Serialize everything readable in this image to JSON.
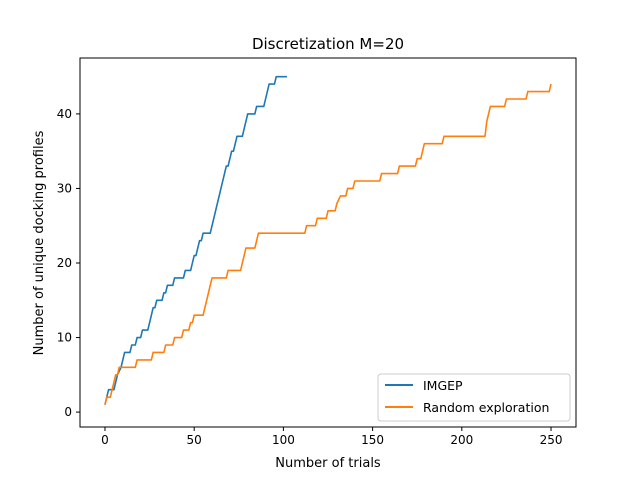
{
  "chart_data": {
    "type": "line",
    "title": "Discretization M=20",
    "xlabel": "Number of trials",
    "ylabel": "Number of unique docking profiles",
    "xlim": [
      -14,
      264
    ],
    "ylim": [
      -2,
      47.5
    ],
    "xticks": [
      0,
      50,
      100,
      150,
      200,
      250
    ],
    "yticks": [
      0,
      10,
      20,
      30,
      40
    ],
    "grid": false,
    "legend_position": "lower-right",
    "series": [
      {
        "name": "IMGEP",
        "color": "#1f77b4",
        "step_points": [
          [
            0,
            1
          ],
          [
            1,
            2
          ],
          [
            2,
            3
          ],
          [
            5,
            3
          ],
          [
            6,
            4
          ],
          [
            7,
            5
          ],
          [
            9,
            6
          ],
          [
            10,
            7
          ],
          [
            11,
            8
          ],
          [
            14,
            8
          ],
          [
            15,
            9
          ],
          [
            17,
            9
          ],
          [
            18,
            10
          ],
          [
            20,
            10
          ],
          [
            21,
            11
          ],
          [
            24,
            11
          ],
          [
            25,
            12
          ],
          [
            26,
            13
          ],
          [
            27,
            14
          ],
          [
            28,
            14
          ],
          [
            29,
            15
          ],
          [
            32,
            15
          ],
          [
            33,
            16
          ],
          [
            34,
            16
          ],
          [
            35,
            17
          ],
          [
            38,
            17
          ],
          [
            39,
            18
          ],
          [
            44,
            18
          ],
          [
            45,
            19
          ],
          [
            48,
            19
          ],
          [
            49,
            20
          ],
          [
            50,
            21
          ],
          [
            51,
            21
          ],
          [
            52,
            22
          ],
          [
            53,
            23
          ],
          [
            54,
            23
          ],
          [
            55,
            24
          ],
          [
            59,
            24
          ],
          [
            60,
            25
          ],
          [
            61,
            26
          ],
          [
            62,
            27
          ],
          [
            63,
            28
          ],
          [
            64,
            29
          ],
          [
            65,
            30
          ],
          [
            66,
            31
          ],
          [
            67,
            32
          ],
          [
            68,
            33
          ],
          [
            69,
            33
          ],
          [
            70,
            34
          ],
          [
            71,
            35
          ],
          [
            72,
            35
          ],
          [
            73,
            36
          ],
          [
            74,
            37
          ],
          [
            77,
            37
          ],
          [
            78,
            38
          ],
          [
            79,
            39
          ],
          [
            80,
            40
          ],
          [
            84,
            40
          ],
          [
            85,
            41
          ],
          [
            89,
            41
          ],
          [
            90,
            42
          ],
          [
            91,
            43
          ],
          [
            92,
            44
          ],
          [
            95,
            44
          ],
          [
            96,
            45
          ],
          [
            102,
            45
          ]
        ]
      },
      {
        "name": "Random exploration",
        "color": "#ff7f0e",
        "step_points": [
          [
            0,
            1
          ],
          [
            1,
            2
          ],
          [
            3,
            2
          ],
          [
            4,
            3
          ],
          [
            5,
            4
          ],
          [
            6,
            5
          ],
          [
            7,
            5
          ],
          [
            8,
            6
          ],
          [
            17,
            6
          ],
          [
            18,
            7
          ],
          [
            26,
            7
          ],
          [
            27,
            8
          ],
          [
            33,
            8
          ],
          [
            34,
            9
          ],
          [
            38,
            9
          ],
          [
            39,
            10
          ],
          [
            43,
            10
          ],
          [
            44,
            11
          ],
          [
            47,
            11
          ],
          [
            48,
            12
          ],
          [
            49,
            12
          ],
          [
            50,
            13
          ],
          [
            55,
            13
          ],
          [
            56,
            14
          ],
          [
            57,
            15
          ],
          [
            58,
            16
          ],
          [
            59,
            17
          ],
          [
            60,
            18
          ],
          [
            68,
            18
          ],
          [
            69,
            19
          ],
          [
            76,
            19
          ],
          [
            77,
            20
          ],
          [
            78,
            21
          ],
          [
            79,
            22
          ],
          [
            84,
            22
          ],
          [
            85,
            23
          ],
          [
            86,
            24
          ],
          [
            112,
            24
          ],
          [
            113,
            25
          ],
          [
            118,
            25
          ],
          [
            119,
            26
          ],
          [
            124,
            26
          ],
          [
            125,
            27
          ],
          [
            129,
            27
          ],
          [
            130,
            28
          ],
          [
            132,
            29
          ],
          [
            135,
            29
          ],
          [
            136,
            30
          ],
          [
            139,
            30
          ],
          [
            140,
            31
          ],
          [
            154,
            31
          ],
          [
            155,
            32
          ],
          [
            164,
            32
          ],
          [
            165,
            33
          ],
          [
            174,
            33
          ],
          [
            175,
            34
          ],
          [
            177,
            34
          ],
          [
            178,
            35
          ],
          [
            179,
            36
          ],
          [
            189,
            36
          ],
          [
            190,
            37
          ],
          [
            213,
            37
          ],
          [
            214,
            39
          ],
          [
            215,
            40
          ],
          [
            216,
            41
          ],
          [
            224,
            41
          ],
          [
            225,
            42
          ],
          [
            236,
            42
          ],
          [
            237,
            43
          ],
          [
            249,
            43
          ],
          [
            250,
            44
          ]
        ]
      }
    ]
  }
}
